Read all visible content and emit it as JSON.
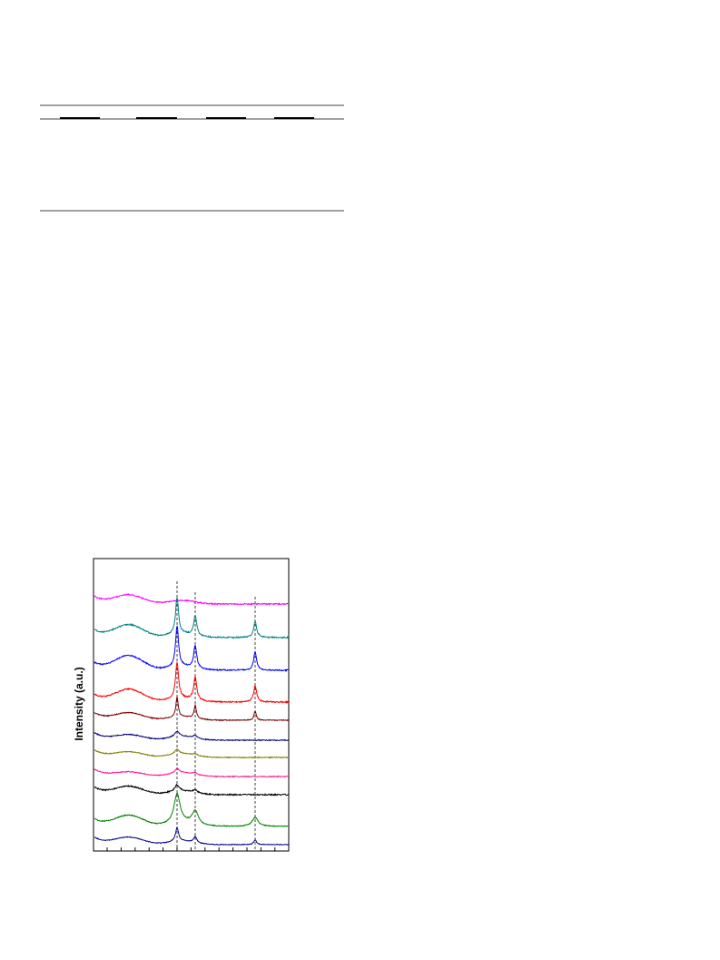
{
  "figure": {
    "ylabel": "Intensity (a.u.)"
  }
}
